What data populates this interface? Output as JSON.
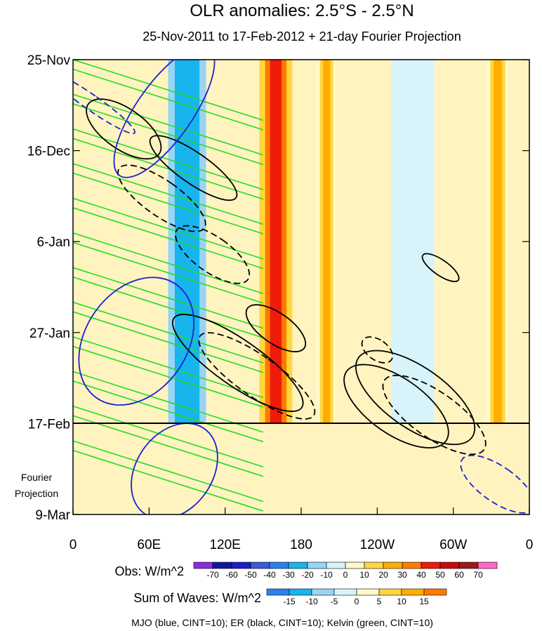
{
  "chart_data": {
    "type": "heatmap",
    "title": "OLR anomalies: 2.5°S - 2.5°N",
    "subtitle": "25-Nov-2011 to 17-Feb-2012 + 21-day Fourier Projection",
    "x_ticks": [
      "0",
      "60E",
      "120E",
      "180",
      "120W",
      "60W",
      "0"
    ],
    "x_tick_lon": [
      0,
      60,
      120,
      180,
      240,
      300,
      360
    ],
    "y_ticks": [
      "25-Nov",
      "16-Dec",
      "6-Jan",
      "27-Jan",
      "17-Feb",
      "9-Mar"
    ],
    "y_tick_day": [
      0,
      21,
      42,
      63,
      84,
      105
    ],
    "projection_label": [
      "Fourier",
      "Projection"
    ],
    "obs_end_day": 84,
    "obs_legend": {
      "label": "Obs: W/m^2",
      "levels": [
        "-70",
        "-60",
        "-50",
        "-40",
        "-30",
        "-20",
        "-10",
        "0",
        "10",
        "20",
        "30",
        "40",
        "50",
        "60",
        "70"
      ],
      "colors": [
        "#8a2be2",
        "#1414a0",
        "#1e1ecc",
        "#3a5ad8",
        "#2a82f0",
        "#18b4ee",
        "#9ad4f5",
        "#d8f4fb",
        "#fff8c8",
        "#ffd640",
        "#ffae00",
        "#ff7a00",
        "#ee1a0a",
        "#c80a0a",
        "#9b1a1a",
        "#ff6ac8"
      ]
    },
    "waves_legend": {
      "label": "Sum of Waves: W/m^2",
      "levels": [
        "-15",
        "-10",
        "-5",
        "0",
        "5",
        "10",
        "15"
      ],
      "colors": [
        "#2a82f0",
        "#18b4ee",
        "#9ad4f5",
        "#d8f4fb",
        "#fff8c8",
        "#ffd640",
        "#ffae00",
        "#ff7a00"
      ]
    },
    "contour_note": "MJO (blue, CINT=10); ER (black, CINT=10); Kelvin (green, CINT=10)",
    "bands": [
      {
        "lon": 160,
        "width": 26,
        "level": 40
      },
      {
        "lon": 200,
        "width": 16,
        "level": 20
      },
      {
        "lon": 335,
        "width": 18,
        "level": 20
      },
      {
        "lon": 90,
        "width": 30,
        "level": -30
      },
      {
        "lon": 268,
        "width": 34,
        "level": -10
      }
    ],
    "er_ellipses": [
      {
        "lon": 40,
        "day": 16,
        "rlon": 16,
        "rday": 10,
        "dir": 1,
        "dash": false
      },
      {
        "lon": 70,
        "day": 32,
        "rlon": 14,
        "rday": 12,
        "dir": 1,
        "dash": true
      },
      {
        "lon": 95,
        "day": 25,
        "rlon": 12,
        "rday": 12,
        "dir": 1,
        "dash": false
      },
      {
        "lon": 110,
        "day": 45,
        "rlon": 14,
        "rday": 10,
        "dir": 1,
        "dash": true
      },
      {
        "lon": 130,
        "day": 70,
        "rlon": 18,
        "rday": 18,
        "dir": 1,
        "dash": false
      },
      {
        "lon": 145,
        "day": 73,
        "rlon": 16,
        "rday": 16,
        "dir": 1,
        "dash": true
      },
      {
        "lon": 160,
        "day": 62,
        "rlon": 12,
        "rday": 8,
        "dir": 1,
        "dash": false
      },
      {
        "lon": 255,
        "day": 80,
        "rlon": 22,
        "rday": 14,
        "dir": 1,
        "dash": false
      },
      {
        "lon": 270,
        "day": 78,
        "rlon": 24,
        "rday": 16,
        "dir": 1,
        "dash": false
      },
      {
        "lon": 285,
        "day": 82,
        "rlon": 18,
        "rday": 14,
        "dir": 1,
        "dash": true
      },
      {
        "lon": 240,
        "day": 67,
        "rlon": 8,
        "rday": 4,
        "dir": 1,
        "dash": true
      },
      {
        "lon": 290,
        "day": 48,
        "rlon": 6,
        "rday": 5,
        "dir": 1,
        "dash": false
      }
    ],
    "mjo_ellipses": [
      {
        "lon": 72,
        "day": 12,
        "rlon": 22,
        "rday": 18,
        "dir": -1,
        "dash": false
      },
      {
        "lon": 50,
        "day": 65,
        "rlon": 40,
        "rday": 16,
        "dir": -1,
        "dash": false
      },
      {
        "lon": 80,
        "day": 95,
        "rlon": 30,
        "rday": 12,
        "dir": -1,
        "dash": false
      },
      {
        "lon": 15,
        "day": 10,
        "rlon": 6,
        "rday": 12,
        "dir": 1,
        "dash": true
      },
      {
        "lon": 335,
        "day": 98,
        "rlon": 14,
        "rday": 10,
        "dir": 1,
        "dash": true
      }
    ],
    "kelvin_line_days": [
      0,
      8,
      16,
      24,
      32,
      40,
      48,
      56,
      64,
      72,
      80,
      88
    ]
  }
}
